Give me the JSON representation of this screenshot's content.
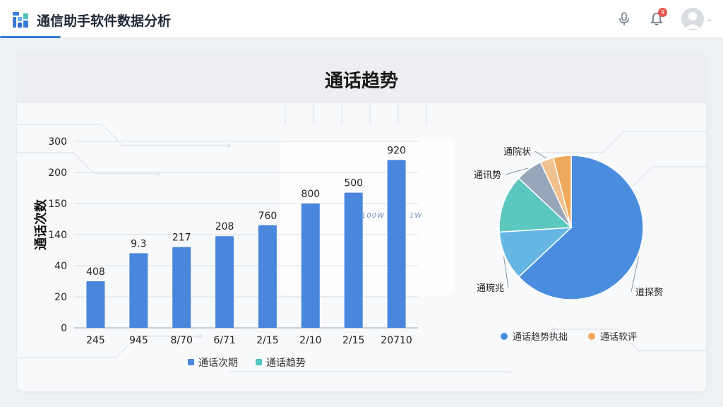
{
  "header": {
    "app_title": "通信助手软件数据分析",
    "notification_count": "9",
    "icons": [
      "grid-logo-icon",
      "microphone-icon",
      "bell-icon",
      "avatar-icon",
      "chevron-down-icon"
    ]
  },
  "main": {
    "title": "通话趋势",
    "wave_labels": [
      "100W",
      "1W"
    ]
  },
  "colors": {
    "bar": "#4a86dc",
    "accent": "#3a7bd5",
    "pie": [
      "#4a8ddf",
      "#66b6e4",
      "#5cc7bf",
      "#97a6ba",
      "#f2c191",
      "#eea95c"
    ],
    "legend_bar": [
      "#4a86dc",
      "#52c6be"
    ],
    "legend_pie": [
      "#4a8ddf",
      "#eea95c"
    ]
  },
  "chart_data": [
    {
      "type": "bar",
      "ylabel": "通话次数",
      "y_tick_labels": [
        "0",
        "20",
        "40",
        "140",
        "150",
        "200",
        "300"
      ],
      "categories": [
        "245",
        "945",
        "8/70",
        "6/71",
        "2/15",
        "2/10",
        "2/15",
        "20710"
      ],
      "bar_labels": [
        "408",
        "9.3",
        "217",
        "208",
        "760",
        "800",
        "500",
        "920"
      ],
      "values": [
        30,
        48,
        52,
        59,
        66,
        80,
        87,
        108
      ],
      "value_note": "tick labels are non-linear; values are on the 6-step tick index scale x20",
      "ylim": [
        0,
        120
      ],
      "legend": [
        "通话次期",
        "通话趋势"
      ],
      "legend_position": "bottom-center"
    },
    {
      "type": "pie",
      "slices": [
        {
          "label": "道探赘",
          "value": 63
        },
        {
          "label": "通琬兆",
          "value": 11
        },
        {
          "label": "",
          "value": 13
        },
        {
          "label": "通讯势",
          "value": 6
        },
        {
          "label": "通院状",
          "value": 3
        },
        {
          "label": "",
          "value": 4
        }
      ],
      "legend": [
        "通话趋势执拙",
        "通话软评"
      ],
      "legend_position": "bottom-center"
    }
  ]
}
